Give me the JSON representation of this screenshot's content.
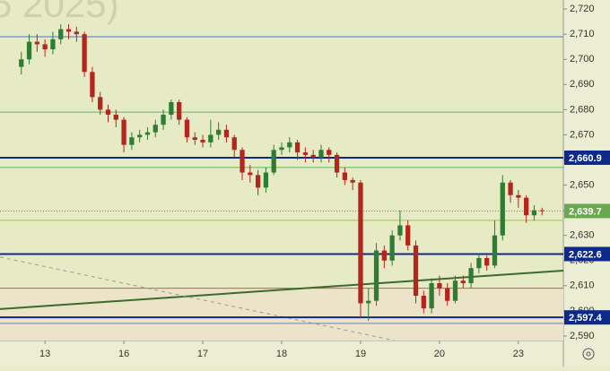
{
  "chart_data": {
    "type": "candlestick",
    "watermark": "5 2025)",
    "x": [
      0,
      1,
      2,
      3,
      4,
      5,
      6,
      7,
      8,
      9,
      10,
      11,
      12,
      13,
      14,
      15,
      16,
      17,
      18,
      19,
      20,
      21,
      22,
      23,
      24,
      25,
      26,
      27,
      28,
      29,
      30,
      31,
      32,
      33,
      34,
      35,
      36,
      37,
      38,
      39,
      40,
      41,
      42,
      43,
      44,
      45,
      46,
      47,
      48,
      49,
      50,
      51,
      52,
      53,
      54,
      55,
      56,
      57,
      58,
      59,
      60,
      61,
      62,
      63,
      64,
      65,
      66
    ],
    "open": [
      2697,
      2700,
      2707,
      2706,
      2704,
      2708,
      2712,
      2711,
      2710,
      2695,
      2685,
      2680,
      2678,
      2676,
      2666,
      2669,
      2670,
      2671,
      2674,
      2678,
      2683,
      2676,
      2669,
      2668,
      2667,
      2670,
      2672,
      2669,
      2664,
      2655,
      2654,
      2649,
      2655,
      2664,
      2665,
      2667,
      2663,
      2662,
      2661,
      2664,
      2662,
      2655,
      2652,
      2651,
      2603,
      2604,
      2624,
      2620,
      2630,
      2634,
      2626,
      2606,
      2601,
      2611,
      2609,
      2604,
      2612,
      2611,
      2617,
      2621,
      2618,
      2630,
      2651,
      2646,
      2645,
      2638,
      2640
    ],
    "high": [
      2703,
      2710,
      2710,
      2708,
      2711,
      2714,
      2714,
      2713,
      2711,
      2697,
      2687,
      2682,
      2680,
      2677,
      2671,
      2672,
      2673,
      2676,
      2680,
      2684,
      2684,
      2677,
      2671,
      2670,
      2676,
      2675,
      2674,
      2670,
      2665,
      2658,
      2656,
      2657,
      2666,
      2667,
      2669,
      2668,
      2665,
      2664,
      2666,
      2665,
      2663,
      2657,
      2653,
      2652,
      2609,
      2627,
      2626,
      2632,
      2640,
      2636,
      2628,
      2608,
      2613,
      2614,
      2611,
      2614,
      2614,
      2619,
      2623,
      2622,
      2636,
      2654,
      2652,
      2648,
      2646,
      2642,
      2641
    ],
    "low": [
      2694,
      2698,
      2703,
      2701,
      2702,
      2706,
      2708,
      2707,
      2693,
      2683,
      2678,
      2675,
      2673,
      2663,
      2664,
      2667,
      2668,
      2669,
      2672,
      2676,
      2674,
      2667,
      2666,
      2665,
      2665,
      2668,
      2667,
      2661,
      2652,
      2651,
      2646,
      2647,
      2654,
      2662,
      2663,
      2660,
      2659,
      2659,
      2659,
      2659,
      2653,
      2650,
      2648,
      2597,
      2596,
      2602,
      2617,
      2618,
      2628,
      2624,
      2603,
      2599,
      2599,
      2606,
      2602,
      2603,
      2609,
      2609,
      2615,
      2616,
      2617,
      2628,
      2643,
      2641,
      2635,
      2636,
      2638
    ],
    "close": [
      2700,
      2707,
      2706,
      2704,
      2708,
      2712,
      2711,
      2710,
      2695,
      2685,
      2680,
      2678,
      2676,
      2666,
      2669,
      2670,
      2671,
      2674,
      2678,
      2683,
      2676,
      2669,
      2668,
      2667,
      2670,
      2672,
      2669,
      2664,
      2655,
      2654,
      2649,
      2655,
      2664,
      2665,
      2667,
      2663,
      2662,
      2661,
      2664,
      2662,
      2655,
      2652,
      2651,
      2603,
      2604,
      2624,
      2620,
      2630,
      2634,
      2626,
      2606,
      2601,
      2611,
      2609,
      2604,
      2612,
      2611,
      2617,
      2621,
      2618,
      2630,
      2651,
      2646,
      2645,
      2638,
      2640,
      2639.7
    ],
    "up_color": "#2e7d32",
    "down_color": "#b3261e",
    "xlim": [
      -2.7,
      68.7
    ],
    "xticks": [
      {
        "value": 3,
        "label": "13"
      },
      {
        "value": 13,
        "label": "16"
      },
      {
        "value": 23,
        "label": "17"
      },
      {
        "value": 33,
        "label": "18"
      },
      {
        "value": 43,
        "label": "19"
      },
      {
        "value": 53,
        "label": "20"
      },
      {
        "value": 63,
        "label": "23"
      }
    ],
    "ylim": [
      2588.2,
      2723.6
    ],
    "yticks": [
      {
        "value": 2590,
        "label": "2,590"
      },
      {
        "value": 2600,
        "label": "2,600"
      },
      {
        "value": 2610,
        "label": "2,610"
      },
      {
        "value": 2620,
        "label": "2,620"
      },
      {
        "value": 2630,
        "label": "2,630"
      },
      {
        "value": 2640,
        "label": "2,640"
      },
      {
        "value": 2650,
        "label": "2,650"
      },
      {
        "value": 2660,
        "label": "2,660"
      },
      {
        "value": 2670,
        "label": "2,670"
      },
      {
        "value": 2680,
        "label": "2,680"
      },
      {
        "value": 2690,
        "label": "2,690"
      },
      {
        "value": 2700,
        "label": "2,700"
      },
      {
        "value": 2710,
        "label": "2,710"
      },
      {
        "value": 2720,
        "label": "2,720"
      }
    ],
    "lines": [
      {
        "value": 2709,
        "color": "#3b7dd8"
      },
      {
        "value": 2679,
        "color": "#5cb85c"
      },
      {
        "value": 2657,
        "color": "#5cb85c"
      },
      {
        "value": 2636,
        "color": "#9acd32"
      },
      {
        "value": 2609,
        "color": "#d9534f"
      },
      {
        "value": 2595,
        "color": "#7a7ab8"
      }
    ],
    "levels": [
      {
        "value": 2660.9,
        "label": "2,660.9",
        "color": "#0d2a8a"
      },
      {
        "value": 2622.6,
        "label": "2,622.6",
        "color": "#0d2a8a"
      },
      {
        "value": 2597.4,
        "label": "2,597.4",
        "color": "#0d2a8a"
      }
    ],
    "last_price": {
      "value": 2639.7,
      "label": "2,639.7",
      "color": "#6aa84f"
    },
    "trendlines": [
      {
        "x": [
          -2.7,
          68.7
        ],
        "y": [
          2600.7,
          2616.0
        ],
        "color": "#3d6b2d",
        "dashed": false
      },
      {
        "x": [
          -2.7,
          47.3
        ],
        "y": [
          2621.4,
          2588.2
        ],
        "color": "#9a9a9a",
        "dashed": true
      }
    ]
  }
}
